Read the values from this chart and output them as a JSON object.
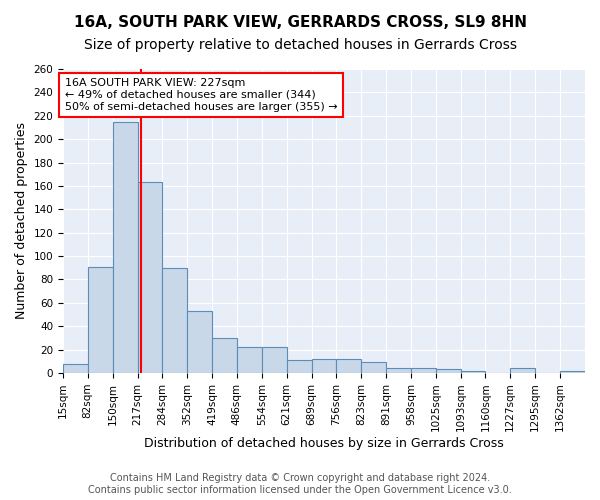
{
  "title1": "16A, SOUTH PARK VIEW, GERRARDS CROSS, SL9 8HN",
  "title2": "Size of property relative to detached houses in Gerrards Cross",
  "xlabel": "Distribution of detached houses by size in Gerrards Cross",
  "ylabel": "Number of detached properties",
  "bin_edges": [
    15,
    82,
    150,
    217,
    284,
    352,
    419,
    486,
    554,
    621,
    689,
    756,
    823,
    891,
    958,
    1025,
    1093,
    1160,
    1227,
    1295,
    1362,
    1430
  ],
  "bar_heights": [
    8,
    91,
    215,
    163,
    90,
    53,
    30,
    22,
    22,
    11,
    12,
    12,
    9,
    4,
    4,
    3,
    2,
    0,
    4,
    0,
    2
  ],
  "bar_color": "#c8d8e8",
  "bar_edge_color": "#5b8db8",
  "red_line_x": 227,
  "annotation_text": "16A SOUTH PARK VIEW: 227sqm\n← 49% of detached houses are smaller (344)\n50% of semi-detached houses are larger (355) →",
  "annotation_box_color": "white",
  "annotation_border_color": "red",
  "ylim": [
    0,
    260
  ],
  "yticks": [
    0,
    20,
    40,
    60,
    80,
    100,
    120,
    140,
    160,
    180,
    200,
    220,
    240,
    260
  ],
  "bg_color": "#e8eef8",
  "footer_line1": "Contains HM Land Registry data © Crown copyright and database right 2024.",
  "footer_line2": "Contains public sector information licensed under the Open Government Licence v3.0.",
  "title1_fontsize": 11,
  "title2_fontsize": 10,
  "xlabel_fontsize": 9,
  "ylabel_fontsize": 9,
  "tick_fontsize": 7.5,
  "annotation_fontsize": 8,
  "footer_fontsize": 7
}
